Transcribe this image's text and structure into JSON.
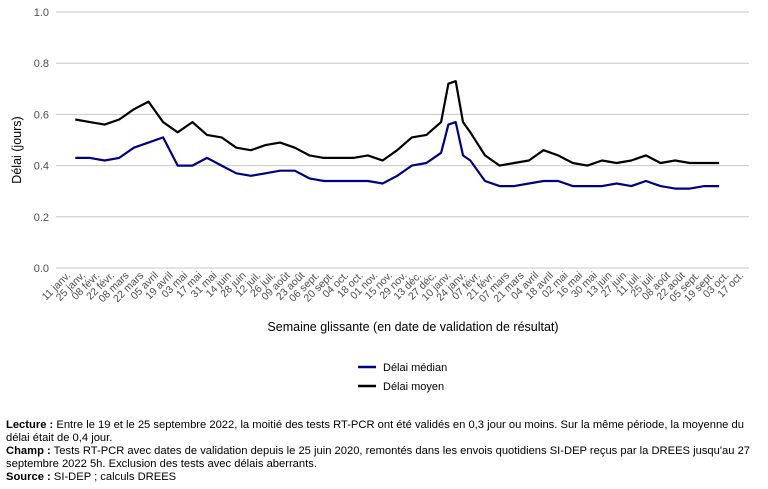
{
  "chart_data": {
    "type": "line",
    "title": "",
    "xlabel": "Semaine glissante (en date de validation de résultat)",
    "ylabel": "Délai (jours)",
    "ylim": [
      0,
      1
    ],
    "yticks": [
      "0.0",
      "0.2",
      "0.4",
      "0.6",
      "0.8",
      "1.0"
    ],
    "grid": "horizontal",
    "legend_position": "bottom",
    "x_tick_labels": [
      "11 janv.",
      "25 janv.",
      "08 févr.",
      "22 févr.",
      "08 mars",
      "22 mars",
      "05 avril",
      "19 avril",
      "03 mai",
      "17 mai",
      "31 mai",
      "14 juin",
      "28 juin",
      "12 juil.",
      "26 juil.",
      "09 août",
      "23 août",
      "06 sept.",
      "20 sept.",
      "04 oct.",
      "18 oct.",
      "01 nov.",
      "15 nov.",
      "29 nov.",
      "13 déc.",
      "27 déc.",
      "10 janv.",
      "24 janv.",
      "07 févr.",
      "21 févr.",
      "07 mars",
      "21 mars",
      "04 avril",
      "18 avril",
      "02 mai",
      "16 mai",
      "30 mai",
      "13 juin",
      "27 juin",
      "11 juil.",
      "25 juil.",
      "08 août",
      "22 août",
      "05 sept.",
      "19 sept.",
      "03 oct.",
      "17 oct."
    ],
    "x_start_tick": 0.5,
    "x": [
      1,
      2,
      3,
      4,
      5,
      6,
      7,
      8,
      9,
      10,
      11,
      12,
      13,
      14,
      15,
      16,
      17,
      18,
      19,
      20,
      21,
      22,
      23,
      24,
      25,
      26,
      26.5,
      27,
      27.5,
      28,
      29,
      30,
      31,
      32,
      33,
      34,
      35,
      36,
      37,
      38,
      39,
      40,
      41,
      42,
      43,
      44,
      45
    ],
    "series": [
      {
        "name": "Délai médian",
        "color": "#000080",
        "values": [
          0.43,
          0.43,
          0.42,
          0.43,
          0.47,
          0.49,
          0.51,
          0.4,
          0.4,
          0.43,
          0.4,
          0.37,
          0.36,
          0.37,
          0.38,
          0.38,
          0.35,
          0.34,
          0.34,
          0.34,
          0.34,
          0.33,
          0.36,
          0.4,
          0.41,
          0.45,
          0.56,
          0.57,
          0.44,
          0.42,
          0.34,
          0.32,
          0.32,
          0.33,
          0.34,
          0.34,
          0.32,
          0.32,
          0.32,
          0.33,
          0.32,
          0.34,
          0.32,
          0.31,
          0.31,
          0.32,
          0.32
        ]
      },
      {
        "name": "Délai moyen",
        "color": "#000000",
        "values": [
          0.58,
          0.57,
          0.56,
          0.58,
          0.62,
          0.65,
          0.57,
          0.53,
          0.57,
          0.52,
          0.51,
          0.47,
          0.46,
          0.48,
          0.49,
          0.47,
          0.44,
          0.43,
          0.43,
          0.43,
          0.44,
          0.42,
          0.46,
          0.51,
          0.52,
          0.57,
          0.72,
          0.73,
          0.57,
          0.53,
          0.44,
          0.4,
          0.41,
          0.42,
          0.46,
          0.44,
          0.41,
          0.4,
          0.42,
          0.41,
          0.42,
          0.44,
          0.41,
          0.42,
          0.41,
          0.41,
          0.41
        ]
      }
    ]
  },
  "notes": {
    "lecture_label": "Lecture :",
    "lecture_text": " Entre le 19 et le 25 septembre 2022, la moitié des tests RT-PCR ont été validés en 0,3 jour ou moins. Sur la même période, la moyenne du délai était de 0,4 jour.",
    "champ_label": "Champ :",
    "champ_text": " Tests RT-PCR avec dates de validation depuis le 25 juin 2020, remontés dans les envois quotidiens SI-DEP reçus par la DREES jusqu'au 27 septembre 2022 5h. Exclusion des tests avec délais aberrants.",
    "source_label": "Source :",
    "source_text": " SI-DEP ; calculs DREES"
  }
}
